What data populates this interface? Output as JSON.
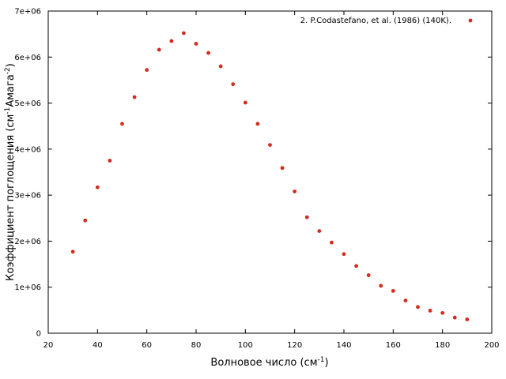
{
  "chart_data": {
    "type": "scatter",
    "xlabel": "Волновое число (см",
    "xlabel_sup": "-1",
    "xlabel_tail": ")",
    "ylabel": "Коэффициент поглощения (см",
    "ylabel_sup1": "-1",
    "ylabel_mid": "Амага",
    "ylabel_sup2": "-2",
    "ylabel_tail": ")",
    "xlim": [
      20,
      200
    ],
    "ylim": [
      0,
      7000000
    ],
    "x_ticks": [
      20,
      40,
      60,
      80,
      100,
      120,
      140,
      160,
      180,
      200
    ],
    "x_tick_labels": [
      "20",
      "40",
      "60",
      "80",
      "100",
      "120",
      "140",
      "160",
      "180",
      "200"
    ],
    "y_ticks": [
      0,
      1000000,
      2000000,
      3000000,
      4000000,
      5000000,
      6000000,
      7000000
    ],
    "y_tick_labels": [
      "0",
      "1e+06",
      "2e+06",
      "3e+06",
      "4e+06",
      "5e+06",
      "6e+06",
      "7e+06"
    ],
    "legend_position": "top-right",
    "point_color": "#d62a1e",
    "series": [
      {
        "name": "2. P.Codastefano, et al. (1986)  (140K).",
        "x": [
          30,
          35,
          40,
          45,
          50,
          55,
          60,
          65,
          70,
          75,
          80,
          85,
          90,
          95,
          100,
          105,
          110,
          115,
          120,
          125,
          130,
          135,
          140,
          145,
          150,
          155,
          160,
          165,
          170,
          175,
          180,
          185,
          190
        ],
        "y": [
          1770000,
          2450000,
          3170000,
          3750000,
          4550000,
          5130000,
          5720000,
          6160000,
          6350000,
          6520000,
          6290000,
          6090000,
          5800000,
          5410000,
          5010000,
          4550000,
          4090000,
          3590000,
          3080000,
          2520000,
          2220000,
          1970000,
          1720000,
          1460000,
          1260000,
          1030000,
          920000,
          710000,
          570000,
          490000,
          440000,
          340000,
          300000
        ]
      }
    ]
  }
}
